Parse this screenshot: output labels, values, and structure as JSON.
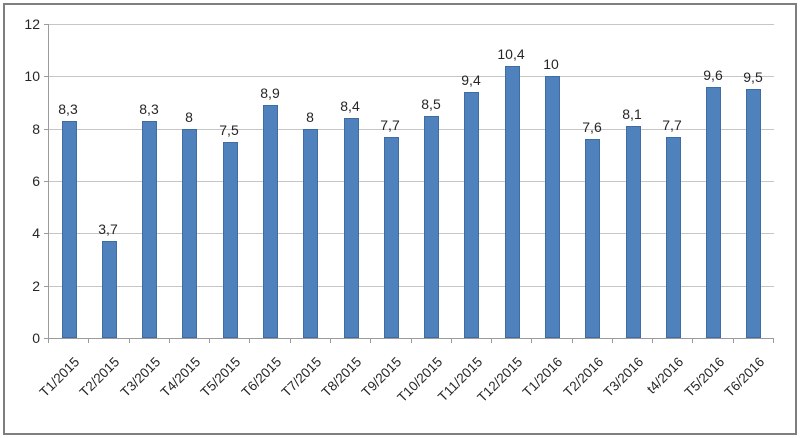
{
  "chart_data": {
    "type": "bar",
    "title": "",
    "xlabel": "",
    "ylabel": "",
    "categories": [
      "T1/2015",
      "T2/2015",
      "T3/2015",
      "T4/2015",
      "T5/2015",
      "T6/2015",
      "T7/2015",
      "T8/2015",
      "T9/2015",
      "T10/2015",
      "T11/2015",
      "T12/2015",
      "T1/2016",
      "T2/2016",
      "T3/2016",
      "t4/2016",
      "T5/2016",
      "T6/2016"
    ],
    "values": [
      8.3,
      3.7,
      8.3,
      8,
      7.5,
      8.9,
      8,
      8.4,
      7.7,
      8.5,
      9.4,
      10.4,
      10,
      7.6,
      8.1,
      7.7,
      9.6,
      9.5
    ],
    "value_labels": [
      "8,3",
      "3,7",
      "8,3",
      "8",
      "7,5",
      "8,9",
      "8",
      "8,4",
      "7,7",
      "8,5",
      "9,4",
      "10,4",
      "10",
      "7,6",
      "8,1",
      "7,7",
      "9,6",
      "9,5"
    ],
    "ylim": [
      0,
      12
    ],
    "yticks": [
      0,
      2,
      4,
      6,
      8,
      10,
      12
    ],
    "grid": true,
    "legend": false,
    "colors": {
      "bar_fill": "#4F81BD",
      "bar_edge": "#3F6DA3",
      "gridline": "#C6C6C6",
      "axis_line": "#9B9B9B",
      "text": "#262626",
      "frame_border": "#7F7F7F"
    }
  }
}
